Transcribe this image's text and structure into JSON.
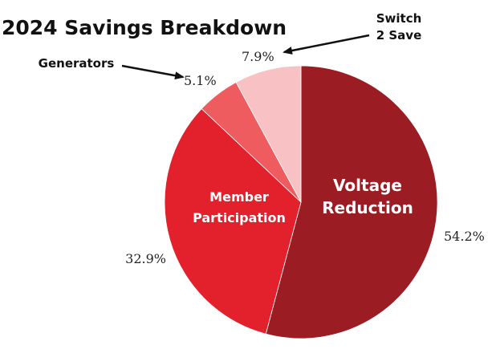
{
  "chart_data": {
    "type": "pie",
    "title": "2024 Savings Breakdown",
    "start_angle_deg": 0,
    "direction": "clockwise",
    "slices": [
      {
        "label": "Voltage Reduction",
        "label_lines": [
          "Voltage",
          "Reduction"
        ],
        "value": 54.2,
        "value_label": "54.2%",
        "color": "#9B1C23",
        "label_placement": "inside"
      },
      {
        "label": "Member Participation",
        "label_lines": [
          "Member",
          "Participation"
        ],
        "value": 32.9,
        "value_label": "32.9%",
        "color": "#E3212C",
        "label_placement": "inside"
      },
      {
        "label": "Generators",
        "label_lines": [
          "Generators"
        ],
        "value": 5.1,
        "value_label": "5.1%",
        "color": "#EF5C5F",
        "label_placement": "callout"
      },
      {
        "label": "Switch 2 Save",
        "label_lines": [
          "Switch",
          "2 Save"
        ],
        "value": 7.9,
        "value_label": "7.9%",
        "color": "#F8C1C3",
        "label_placement": "callout"
      }
    ]
  }
}
